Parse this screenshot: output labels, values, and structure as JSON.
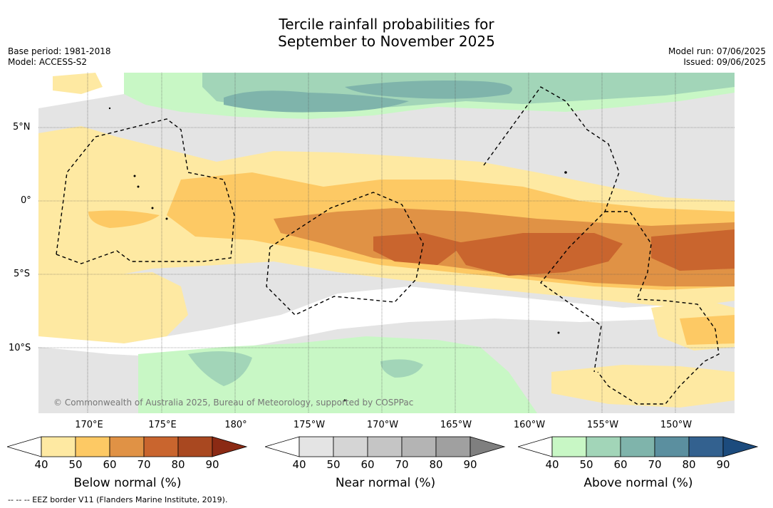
{
  "title_line1": "Tercile rainfall probabilities for",
  "title_line2": "September to November 2025",
  "base_period": "Base period: 1981-2018",
  "model": "Model: ACCESS-S2",
  "model_run": "Model run: 07/06/2025",
  "issued": "Issued: 09/06/2025",
  "lat_labels": [
    "5°N",
    "0°",
    "5°S",
    "10°S"
  ],
  "lon_labels": [
    "170°E",
    "175°E",
    "180°",
    "175°W",
    "170°W",
    "165°W",
    "160°W",
    "155°W",
    "150°W"
  ],
  "copyright": "© Commonwealth of Australia 2025, Bureau of Meteorology, supported by COSPPac",
  "footnote": "--  --  -- EEZ border V11 (Flanders Marine Institute, 2019).",
  "colorbars": [
    {
      "title": "Below normal (%)",
      "ticks": [
        "40",
        "50",
        "60",
        "70",
        "80",
        "90"
      ],
      "colors": [
        "#ffffff",
        "#fee9a2",
        "#fdc964",
        "#e09245",
        "#c9652e",
        "#a94820",
        "#8b2a14"
      ]
    },
    {
      "title": "Near normal (%)",
      "ticks": [
        "40",
        "50",
        "60",
        "70",
        "80",
        "90"
      ],
      "colors": [
        "#ffffff",
        "#e4e4e4",
        "#d5d5d5",
        "#c5c5c5",
        "#b4b4b4",
        "#a0a0a0",
        "#7f7f7f"
      ]
    },
    {
      "title": "Above normal (%)",
      "ticks": [
        "40",
        "50",
        "60",
        "70",
        "80",
        "90"
      ],
      "colors": [
        "#ffffff",
        "#c8f7c5",
        "#a2d5b8",
        "#7fb4ab",
        "#5b8f9f",
        "#33618f",
        "#1c4b7d"
      ]
    }
  ]
}
